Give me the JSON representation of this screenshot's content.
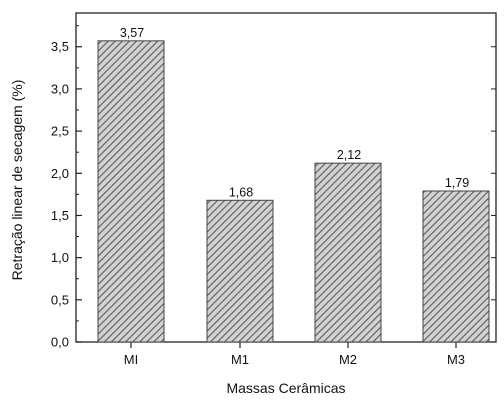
{
  "chart_data": {
    "type": "bar",
    "title": "",
    "xlabel": "Massas Cerâmicas",
    "ylabel": "Retração linear de secagem (%)",
    "categories": [
      "MI",
      "M1",
      "M2",
      "M3"
    ],
    "values": [
      3.57,
      1.68,
      2.12,
      1.79
    ],
    "value_labels": [
      "3,57",
      "1,68",
      "2,12",
      "1,79"
    ],
    "ylim": [
      0,
      3.9
    ],
    "yticks": [
      0.0,
      0.5,
      1.0,
      1.5,
      2.0,
      2.5,
      3.0,
      3.5
    ],
    "ytick_labels": [
      "0,0",
      "0,5",
      "1,0",
      "1,5",
      "2,0",
      "2,5",
      "3,0",
      "3,5"
    ],
    "grid": false,
    "legend": "none",
    "bar_fill": "diagonal hatch",
    "bar_color": "#555555"
  }
}
